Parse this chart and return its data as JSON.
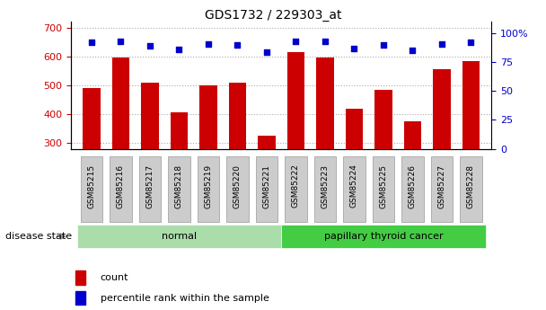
{
  "title": "GDS1732 / 229303_at",
  "samples": [
    "GSM85215",
    "GSM85216",
    "GSM85217",
    "GSM85218",
    "GSM85219",
    "GSM85220",
    "GSM85221",
    "GSM85222",
    "GSM85223",
    "GSM85224",
    "GSM85225",
    "GSM85226",
    "GSM85227",
    "GSM85228"
  ],
  "counts": [
    490,
    595,
    510,
    405,
    500,
    510,
    325,
    615,
    595,
    420,
    485,
    375,
    555,
    585
  ],
  "percentiles": [
    92,
    93,
    89,
    86,
    91,
    90,
    84,
    93,
    93,
    87,
    90,
    85,
    91,
    92
  ],
  "groups": [
    {
      "label": "normal",
      "start": 0,
      "end": 7,
      "color": "#aaddaa"
    },
    {
      "label": "papillary thyroid cancer",
      "start": 7,
      "end": 14,
      "color": "#44cc44"
    }
  ],
  "ylim_left": [
    280,
    720
  ],
  "ylim_right": [
    0,
    110
  ],
  "yticks_left": [
    300,
    400,
    500,
    600,
    700
  ],
  "yticks_right": [
    0,
    25,
    50,
    75,
    100
  ],
  "bar_color": "#CC0000",
  "scatter_color": "#0000CC",
  "grid_color": "#aaaaaa",
  "ticklabel_bg": "#cccccc",
  "disease_state_label": "disease state",
  "legend_count": "count",
  "legend_percentile": "percentile rank within the sample",
  "fig_width": 6.08,
  "fig_height": 3.45,
  "dpi": 100
}
